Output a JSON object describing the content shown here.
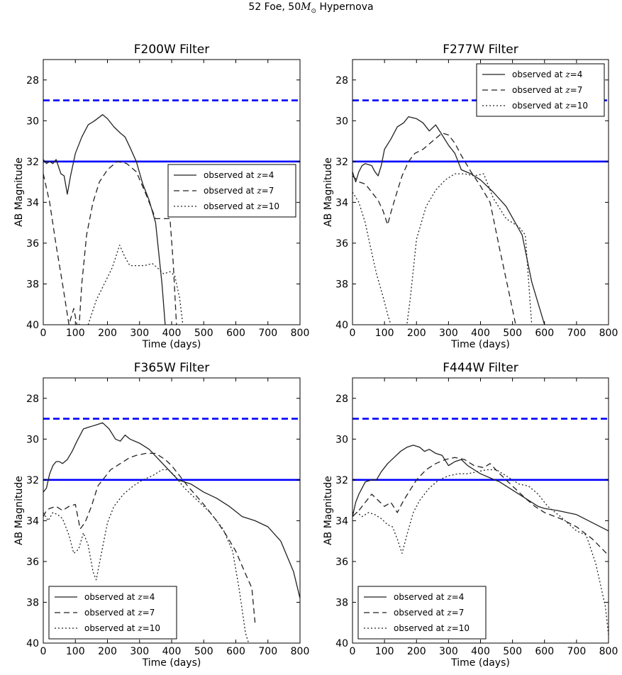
{
  "figure": {
    "suptitle_pre": "52 Foe, 50",
    "suptitle_msym": "M",
    "suptitle_sub": "⊙",
    "suptitle_post": " Hypernova"
  },
  "legend": {
    "prefix": "observed at ",
    "var": "z",
    "entries": [
      "=4",
      "=7",
      "=10"
    ]
  },
  "chart_data": [
    {
      "type": "line",
      "title": "F200W Filter",
      "xlabel": "Time (days)",
      "ylabel": "AB Magnitude",
      "xlim": [
        0,
        800
      ],
      "ylim": [
        40,
        27
      ],
      "xticks": [
        0,
        100,
        200,
        300,
        400,
        500,
        600,
        700,
        800
      ],
      "yticks": [
        28,
        30,
        32,
        34,
        36,
        38,
        40
      ],
      "legend_loc": "center-right",
      "hlines": [
        {
          "y": 29,
          "style": "dashed",
          "color": "#0000ff"
        },
        {
          "y": 32,
          "style": "solid",
          "color": "#0000ff"
        }
      ],
      "series": [
        {
          "name": "observed at z=4",
          "style": "solid",
          "x": [
            0,
            10,
            20,
            30,
            40,
            55,
            65,
            75,
            85,
            100,
            120,
            140,
            160,
            185,
            200,
            220,
            240,
            255,
            270,
            290,
            310,
            330,
            350,
            370,
            380
          ],
          "y": [
            31.9,
            32.1,
            32.0,
            32.1,
            31.9,
            32.6,
            32.7,
            33.6,
            32.7,
            31.6,
            30.8,
            30.2,
            30.0,
            29.7,
            29.9,
            30.3,
            30.6,
            30.8,
            31.3,
            32.0,
            33.1,
            33.9,
            35.0,
            38.0,
            40.0
          ]
        },
        {
          "name": "observed at z=7",
          "style": "dashed",
          "x": [
            0,
            20,
            40,
            60,
            80,
            95,
            105,
            112,
            120,
            135,
            155,
            175,
            200,
            230,
            260,
            290,
            320,
            350,
            370,
            385,
            395,
            405,
            415
          ],
          "y": [
            32.6,
            34.0,
            36.1,
            38.0,
            40.0,
            39.2,
            40.0,
            40.0,
            38.0,
            35.6,
            34.0,
            33.0,
            32.4,
            32.0,
            32.1,
            32.5,
            33.6,
            34.8,
            34.8,
            34.8,
            34.8,
            37.0,
            40.0
          ]
        },
        {
          "name": "observed at z=10",
          "style": "dotted",
          "x": [
            140,
            165,
            190,
            215,
            238,
            255,
            270,
            290,
            315,
            340,
            355,
            375,
            395,
            410,
            425,
            435
          ],
          "y": [
            40.0,
            38.8,
            38.0,
            37.2,
            36.1,
            36.7,
            37.1,
            37.1,
            37.1,
            37.0,
            37.2,
            37.5,
            37.4,
            37.6,
            38.7,
            40.0
          ]
        }
      ]
    },
    {
      "type": "line",
      "title": "F277W Filter",
      "xlabel": "Time (days)",
      "ylabel": "AB Magnitude",
      "xlim": [
        0,
        800
      ],
      "ylim": [
        40,
        27
      ],
      "xticks": [
        0,
        100,
        200,
        300,
        400,
        500,
        600,
        700,
        800
      ],
      "yticks": [
        28,
        30,
        32,
        34,
        36,
        38,
        40
      ],
      "legend_loc": "upper-right",
      "hlines": [
        {
          "y": 29,
          "style": "dashed",
          "color": "#0000ff"
        },
        {
          "y": 32,
          "style": "solid",
          "color": "#0000ff"
        }
      ],
      "series": [
        {
          "name": "observed at z=4",
          "style": "solid",
          "x": [
            0,
            10,
            20,
            30,
            40,
            60,
            70,
            80,
            90,
            100,
            120,
            140,
            160,
            175,
            200,
            220,
            240,
            260,
            280,
            300,
            320,
            340,
            370,
            400,
            440,
            480,
            530,
            560,
            600
          ],
          "y": [
            32.5,
            33.0,
            32.5,
            32.2,
            32.1,
            32.2,
            32.5,
            32.7,
            32.2,
            31.4,
            30.9,
            30.3,
            30.1,
            29.8,
            29.9,
            30.1,
            30.5,
            30.2,
            30.7,
            31.2,
            31.6,
            32.4,
            32.6,
            32.9,
            33.5,
            34.2,
            35.6,
            37.9,
            40.0
          ]
        },
        {
          "name": "observed at z=7",
          "style": "dashed",
          "x": [
            0,
            20,
            40,
            60,
            80,
            95,
            110,
            120,
            135,
            155,
            175,
            195,
            220,
            250,
            280,
            300,
            320,
            340,
            370,
            400,
            430,
            460,
            490,
            510
          ],
          "y": [
            32.7,
            33.0,
            33.1,
            33.5,
            33.9,
            34.4,
            35.1,
            34.5,
            33.7,
            32.7,
            32.0,
            31.6,
            31.4,
            31.0,
            30.6,
            30.7,
            31.1,
            31.7,
            32.5,
            33.2,
            34.0,
            36.3,
            38.5,
            40.0
          ]
        },
        {
          "name": "observed at z=10",
          "style": "dotted",
          "x": [
            0,
            20,
            40,
            55,
            75,
            95,
            110,
            120,
            135,
            155,
            170,
            180,
            200,
            230,
            260,
            290,
            320,
            350,
            380,
            410,
            440,
            480,
            520,
            540,
            550,
            560
          ],
          "y": [
            33.5,
            34.0,
            35.0,
            36.1,
            37.5,
            38.6,
            39.5,
            40.0,
            40.0,
            40.0,
            40.0,
            38.8,
            35.8,
            34.2,
            33.4,
            32.9,
            32.6,
            32.6,
            32.7,
            32.6,
            33.8,
            34.8,
            35.2,
            35.6,
            37.8,
            40.0
          ]
        }
      ]
    },
    {
      "type": "line",
      "title": "F365W Filter",
      "xlabel": "Time (days)",
      "ylabel": "AB Magnitude",
      "xlim": [
        0,
        800
      ],
      "ylim": [
        40,
        27
      ],
      "xticks": [
        0,
        100,
        200,
        300,
        400,
        500,
        600,
        700,
        800
      ],
      "yticks": [
        28,
        30,
        32,
        34,
        36,
        38,
        40
      ],
      "legend_loc": "lower-left",
      "hlines": [
        {
          "y": 29,
          "style": "dashed",
          "color": "#0000ff"
        },
        {
          "y": 32,
          "style": "solid",
          "color": "#0000ff"
        }
      ],
      "series": [
        {
          "name": "observed at z=4",
          "style": "solid",
          "x": [
            0,
            10,
            20,
            30,
            40,
            50,
            60,
            75,
            90,
            105,
            125,
            145,
            165,
            185,
            205,
            225,
            240,
            255,
            270,
            300,
            330,
            360,
            390,
            420,
            460,
            500,
            540,
            580,
            620,
            660,
            700,
            740,
            780,
            800
          ],
          "y": [
            32.6,
            32.4,
            31.7,
            31.3,
            31.1,
            31.1,
            31.2,
            31.0,
            30.6,
            30.1,
            29.5,
            29.4,
            29.3,
            29.2,
            29.5,
            30.0,
            30.1,
            29.8,
            30.0,
            30.2,
            30.5,
            31.0,
            31.5,
            32.0,
            32.2,
            32.6,
            32.9,
            33.3,
            33.8,
            34.0,
            34.3,
            35.0,
            36.5,
            37.8
          ]
        },
        {
          "name": "observed at z=7",
          "style": "dashed",
          "x": [
            0,
            10,
            20,
            40,
            60,
            80,
            100,
            115,
            130,
            150,
            170,
            190,
            210,
            230,
            250,
            270,
            290,
            320,
            350,
            380,
            400,
            420,
            450,
            500,
            540,
            570,
            600,
            630,
            650,
            660
          ],
          "y": [
            33.8,
            33.5,
            33.4,
            33.3,
            33.5,
            33.3,
            33.2,
            34.4,
            34.1,
            33.3,
            32.3,
            31.9,
            31.5,
            31.3,
            31.1,
            30.9,
            30.8,
            30.7,
            30.7,
            31.0,
            31.3,
            31.7,
            32.3,
            33.2,
            34.0,
            34.7,
            35.5,
            36.6,
            37.3,
            39.0
          ]
        },
        {
          "name": "observed at z=10",
          "style": "dotted",
          "x": [
            0,
            15,
            30,
            45,
            60,
            80,
            95,
            110,
            125,
            140,
            155,
            165,
            180,
            200,
            220,
            250,
            280,
            310,
            340,
            370,
            390,
            410,
            440,
            480,
            520,
            560,
            590,
            610,
            630,
            640
          ],
          "y": [
            33.6,
            34.0,
            33.6,
            33.7,
            33.9,
            34.7,
            35.6,
            35.4,
            34.6,
            35.2,
            36.5,
            36.9,
            35.7,
            34.1,
            33.3,
            32.7,
            32.3,
            32.0,
            31.8,
            31.5,
            31.5,
            31.8,
            32.4,
            33.0,
            33.6,
            34.4,
            35.5,
            37.3,
            39.5,
            40.0
          ]
        }
      ]
    },
    {
      "type": "line",
      "title": "F444W Filter",
      "xlabel": "Time (days)",
      "ylabel": "AB Magnitude",
      "xlim": [
        0,
        800
      ],
      "ylim": [
        40,
        27
      ],
      "xticks": [
        0,
        100,
        200,
        300,
        400,
        500,
        600,
        700,
        800
      ],
      "yticks": [
        28,
        30,
        32,
        34,
        36,
        38,
        40
      ],
      "legend_loc": "lower-left",
      "hlines": [
        {
          "y": 29,
          "style": "dashed",
          "color": "#0000ff"
        },
        {
          "y": 32,
          "style": "solid",
          "color": "#0000ff"
        }
      ],
      "series": [
        {
          "name": "observed at z=4",
          "style": "solid",
          "x": [
            0,
            10,
            20,
            40,
            60,
            75,
            90,
            110,
            130,
            150,
            170,
            190,
            210,
            225,
            240,
            260,
            280,
            300,
            320,
            340,
            360,
            380,
            400,
            430,
            460,
            500,
            540,
            580,
            600,
            640,
            700,
            750,
            800
          ],
          "y": [
            33.8,
            33.1,
            32.7,
            32.1,
            32.0,
            32.0,
            31.6,
            31.2,
            30.9,
            30.6,
            30.4,
            30.3,
            30.4,
            30.6,
            30.5,
            30.7,
            30.8,
            31.3,
            31.1,
            31.0,
            31.3,
            31.5,
            31.7,
            31.9,
            32.1,
            32.5,
            32.9,
            33.3,
            33.4,
            33.5,
            33.7,
            34.1,
            34.5
          ]
        },
        {
          "name": "observed at z=7",
          "style": "dashed",
          "x": [
            0,
            20,
            40,
            60,
            80,
            100,
            120,
            140,
            160,
            180,
            200,
            230,
            260,
            290,
            320,
            350,
            380,
            410,
            430,
            460,
            500,
            540,
            570,
            600,
            650,
            700,
            750,
            800
          ],
          "y": [
            33.8,
            33.5,
            33.1,
            32.7,
            33.0,
            33.3,
            33.1,
            33.6,
            33.0,
            32.5,
            32.0,
            31.5,
            31.2,
            31.0,
            30.9,
            31.0,
            31.3,
            31.4,
            31.2,
            31.7,
            32.3,
            32.9,
            33.3,
            33.6,
            33.9,
            34.3,
            34.9,
            35.7
          ]
        },
        {
          "name": "observed at z=10",
          "style": "dotted",
          "x": [
            0,
            15,
            30,
            50,
            70,
            90,
            110,
            125,
            140,
            155,
            170,
            190,
            210,
            240,
            270,
            300,
            330,
            360,
            390,
            420,
            450,
            480,
            520,
            550,
            580,
            610,
            650,
            700,
            730,
            760,
            790,
            800
          ],
          "y": [
            33.6,
            33.6,
            33.8,
            33.6,
            33.7,
            33.9,
            34.2,
            34.3,
            34.9,
            35.6,
            34.7,
            33.6,
            33.0,
            32.4,
            32.0,
            31.8,
            31.7,
            31.7,
            31.6,
            31.5,
            31.5,
            31.8,
            32.2,
            32.3,
            32.7,
            33.3,
            33.8,
            34.5,
            34.7,
            36.1,
            38.2,
            39.6
          ]
        }
      ]
    }
  ]
}
